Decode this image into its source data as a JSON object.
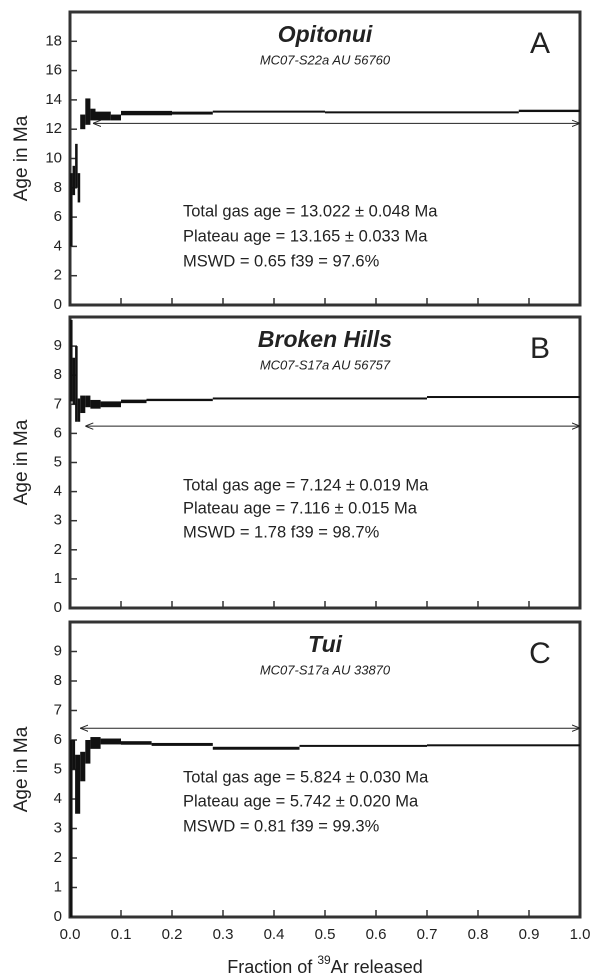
{
  "chart_data": [
    {
      "type": "age-spectrum",
      "title": "Opitonui",
      "subtitle": "MC07-S22a   AU 56760",
      "panel": "A",
      "ylabel": "Age in Ma",
      "ylim": [
        0,
        20
      ],
      "yticks": [
        0,
        2,
        4,
        6,
        8,
        10,
        12,
        14,
        16,
        18
      ],
      "xlim": [
        0,
        1
      ],
      "xticks": [
        0,
        0.1,
        0.2,
        0.3,
        0.4,
        0.5,
        0.6,
        0.7,
        0.8,
        0.9,
        1
      ],
      "edges": [
        0,
        0.005,
        0.01,
        0.015,
        0.02,
        0.03,
        0.04,
        0.05,
        0.08,
        0.1,
        0.2,
        0.28,
        0.5,
        0.88,
        1.0
      ],
      "ages": [
        6.5,
        8.5,
        9.5,
        8,
        12.5,
        13.2,
        13,
        12.9,
        12.8,
        13.1,
        13.1,
        13.2,
        13.15,
        13.25
      ],
      "errors": [
        2.5,
        1,
        1.5,
        1,
        0.5,
        0.9,
        0.4,
        0.3,
        0.2,
        0.15,
        0.1,
        0.05,
        0.05,
        0.08
      ],
      "plateau": {
        "x": [
          0.045,
          1.0
        ],
        "y": 12.4
      },
      "annotations": [
        "Total gas age = 13.022 ± 0.048 Ma",
        "Plateau age = 13.165 ± 0.033 Ma",
        "MSWD = 0.65 f39 = 97.6%"
      ]
    },
    {
      "type": "age-spectrum",
      "title": "Broken Hills",
      "subtitle": "MC07-S17a   AU 56757",
      "panel": "B",
      "ylabel": "Age in Ma",
      "ylim": [
        0,
        10
      ],
      "yticks": [
        0,
        1,
        2,
        3,
        4,
        5,
        6,
        7,
        8,
        9
      ],
      "xlim": [
        0,
        1
      ],
      "xticks": [
        0,
        0.1,
        0.2,
        0.3,
        0.4,
        0.5,
        0.6,
        0.7,
        0.8,
        0.9,
        1
      ],
      "edges": [
        0,
        0.005,
        0.01,
        0.015,
        0.02,
        0.03,
        0.04,
        0.06,
        0.1,
        0.15,
        0.28,
        0.7,
        1.0
      ],
      "ages": [
        8.5,
        7.8,
        7.7,
        6.8,
        7.0,
        7.1,
        7.0,
        7.0,
        7.1,
        7.15,
        7.2,
        7.25
      ],
      "errors": [
        1.4,
        0.8,
        1.3,
        0.4,
        0.3,
        0.2,
        0.15,
        0.1,
        0.06,
        0.04,
        0.03,
        0.03
      ],
      "plateau": {
        "x": [
          0.03,
          1.0
        ],
        "y": 6.25
      },
      "annotations": [
        "Total gas age = 7.124 ± 0.019 Ma",
        "Plateau age = 7.116 ± 0.015 Ma",
        "MSWD = 1.78 f39 = 98.7%"
      ]
    },
    {
      "type": "age-spectrum",
      "title": "Tui",
      "subtitle": "MC07-S17a   AU 33870",
      "panel": "C",
      "ylabel": "Age in Ma",
      "ylim": [
        0,
        10
      ],
      "yticks": [
        0,
        1,
        2,
        3,
        4,
        5,
        6,
        7,
        8,
        9
      ],
      "xlim": [
        0,
        1
      ],
      "xticks": [
        {
          "value": 0,
          "label": "0.0"
        },
        0.1,
        0.2,
        0.3,
        0.4,
        0.5,
        0.6,
        0.7,
        0.8,
        0.9,
        {
          "value": 1,
          "label": "1.0"
        }
      ],
      "xlabel": [
        "Fraction of ",
        "39",
        "Ar released"
      ],
      "edges": [
        0,
        0.005,
        0.01,
        0.02,
        0.03,
        0.04,
        0.06,
        0.1,
        0.16,
        0.28,
        0.45,
        0.7,
        1.0
      ],
      "ages": [
        3,
        5.5,
        4.5,
        5.1,
        5.6,
        5.9,
        5.95,
        5.9,
        5.85,
        5.72,
        5.8,
        5.82
      ],
      "errors": [
        3,
        0.5,
        1,
        0.5,
        0.4,
        0.2,
        0.1,
        0.06,
        0.05,
        0.05,
        0.03,
        0.03
      ],
      "plateau": {
        "x": [
          0.02,
          1.0
        ],
        "y": 6.4
      },
      "annotations": [
        "Total gas age = 5.824 ± 0.030 Ma",
        "Plateau age = 5.742 ± 0.020 Ma",
        "MSWD = 0.81 f39 = 99.3%"
      ]
    }
  ]
}
